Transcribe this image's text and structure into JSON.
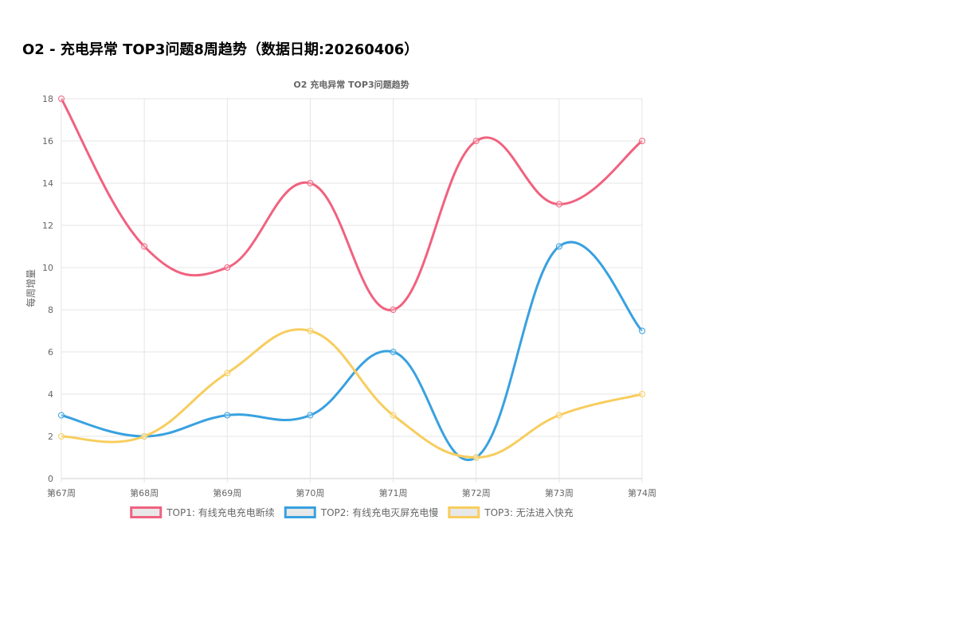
{
  "page": {
    "title": "O2 - 充电异常 TOP3问题8周趋势（数据日期:20260406）"
  },
  "chart_data": {
    "type": "line",
    "title": "O2 充电异常 TOP3问题趋势",
    "xlabel": "",
    "ylabel": "每周增量",
    "categories": [
      "第67周",
      "第68周",
      "第69周",
      "第70周",
      "第71周",
      "第72周",
      "第73周",
      "第74周"
    ],
    "ylim": [
      0,
      18
    ],
    "yticks": [
      0,
      2,
      4,
      6,
      8,
      10,
      12,
      14,
      16,
      18
    ],
    "grid": true,
    "legend_position": "bottom",
    "series": [
      {
        "name": "TOP1: 有线充电充电断续",
        "color": "#f0627f",
        "values": [
          18,
          11,
          10,
          14,
          8,
          16,
          13,
          16
        ]
      },
      {
        "name": "TOP2: 有线充电灭屏充电慢",
        "color": "#38a1e0",
        "values": [
          3,
          2,
          3,
          3,
          6,
          1,
          11,
          7
        ]
      },
      {
        "name": "TOP3: 无法进入快充",
        "color": "#f7cd5e",
        "values": [
          2,
          2,
          5,
          7,
          3,
          1,
          3,
          4
        ]
      }
    ]
  }
}
